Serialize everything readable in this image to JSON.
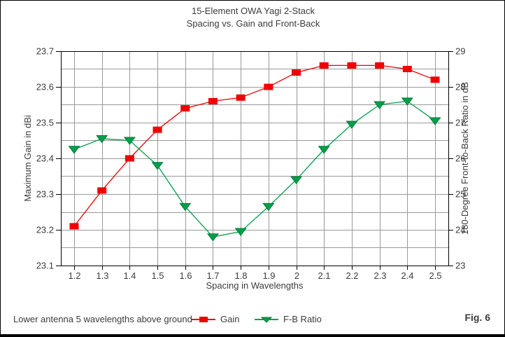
{
  "title": {
    "line1": "15-Element OWA Yagi 2-Stack",
    "line2": "Spacing vs. Gain and Front-Back"
  },
  "footer_note": "Lower antenna 5 wavelengths above ground",
  "figure_label": "Fig. 6",
  "legend": {
    "gain_label": "Gain",
    "fb_label": "F-B Ratio"
  },
  "colors": {
    "gain": "#f00000",
    "fb": "#00a04a",
    "fb_marker_stroke": "#007a37",
    "grid": "#999999",
    "axis": "#000000",
    "text": "#3c3c3c"
  },
  "chart_data": {
    "type": "line",
    "title": "15-Element OWA Yagi 2-Stack — Spacing vs. Gain and Front-Back",
    "xlabel": "Spacing in Wavelengths",
    "ylabel_left": "Maximum Gain in dBi",
    "ylabel_right": "180-Degree Front-to-Back Ratio in dB",
    "x": [
      1.2,
      1.3,
      1.4,
      1.5,
      1.6,
      1.7,
      1.8,
      1.9,
      2.0,
      2.1,
      2.2,
      2.3,
      2.4,
      2.5
    ],
    "x_tick_labels": [
      "1.2",
      "1.3",
      "1.4",
      "1.5",
      "1.6",
      "1.7",
      "1.8",
      "1.9",
      "2",
      "2.1",
      "2.2",
      "2.3",
      "2.4",
      "2.5"
    ],
    "ylim_left": [
      23.1,
      23.7
    ],
    "ylim_right": [
      23,
      29
    ],
    "y_ticks_left": [
      "23.1",
      "23.2",
      "23.3",
      "23.4",
      "23.5",
      "23.6",
      "23.7"
    ],
    "y_ticks_right": [
      "23",
      "24",
      "25",
      "26",
      "27",
      "28",
      "29"
    ],
    "grid": true,
    "grid_step_left": 0.05,
    "legend_position": "bottom",
    "series": [
      {
        "name": "Gain",
        "axis": "left",
        "marker": "square",
        "color": "#f00000",
        "values": [
          23.21,
          23.31,
          23.4,
          23.48,
          23.54,
          23.56,
          23.57,
          23.6,
          23.64,
          23.66,
          23.66,
          23.66,
          23.65,
          23.62
        ]
      },
      {
        "name": "F-B Ratio",
        "axis": "right",
        "marker": "triangle-down",
        "color": "#00a04a",
        "values": [
          26.25,
          26.55,
          26.5,
          25.8,
          24.65,
          23.8,
          23.95,
          24.65,
          25.4,
          26.25,
          26.95,
          27.5,
          27.6,
          27.05
        ]
      }
    ]
  }
}
